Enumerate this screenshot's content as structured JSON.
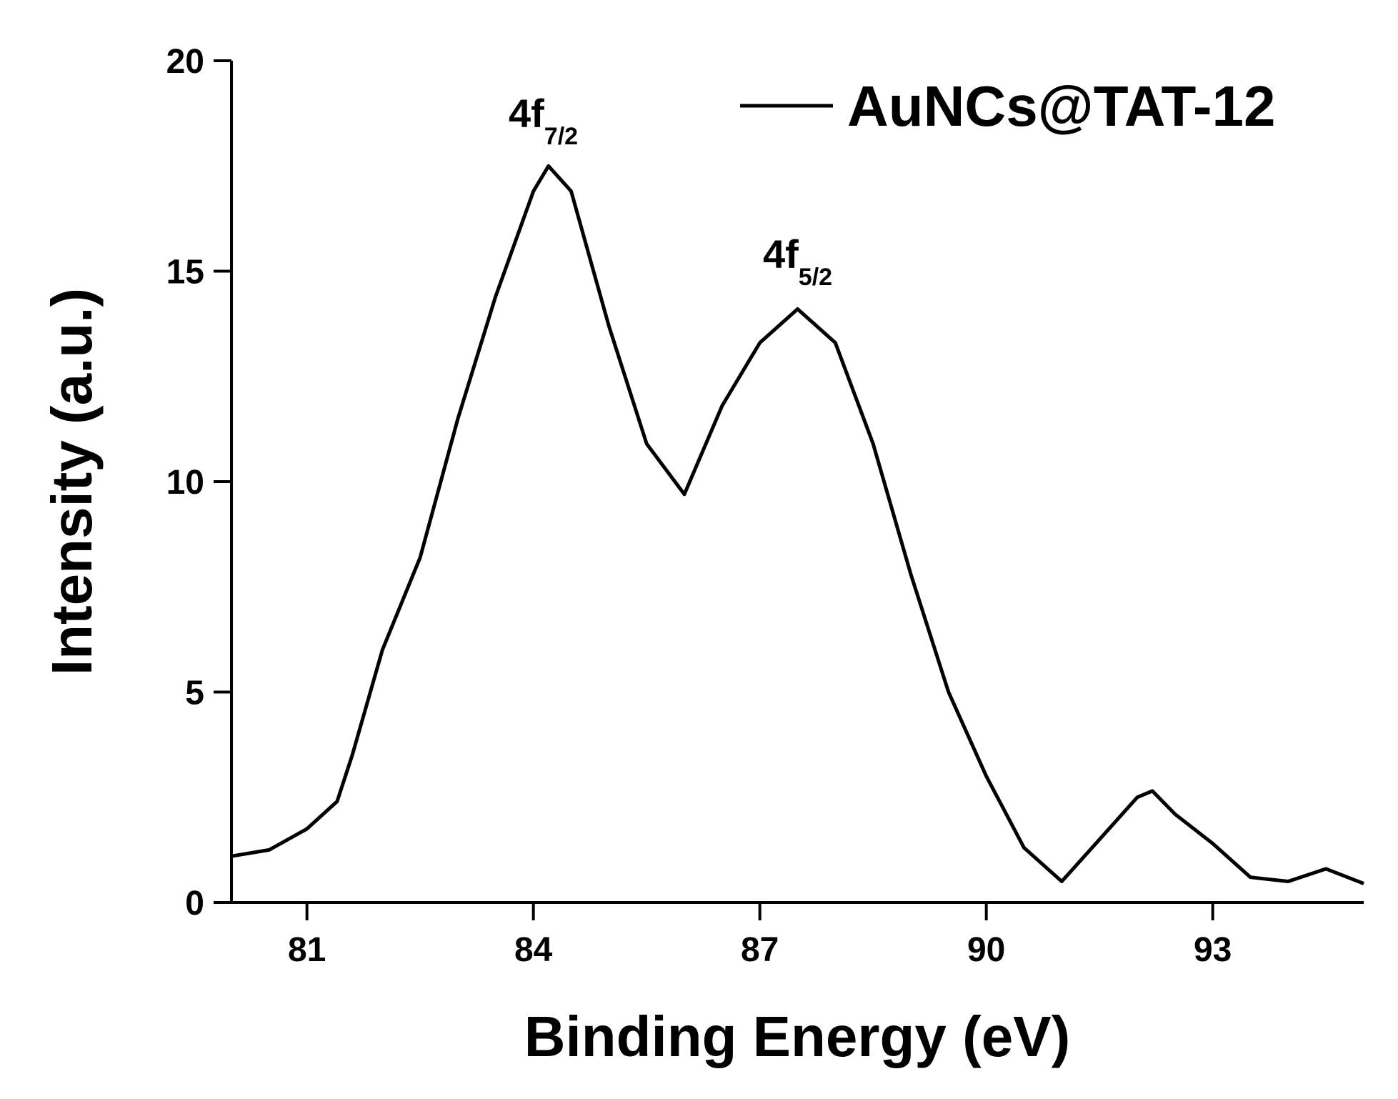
{
  "chart_data": {
    "type": "line",
    "x_label": "Binding Energy (eV)",
    "y_label": "Intensity (a.u.)",
    "x": [
      80,
      80.5,
      81,
      81.4,
      81.6,
      82,
      82.5,
      83,
      83.5,
      84,
      84.2,
      84.5,
      85,
      85.5,
      86,
      86.5,
      87,
      87.5,
      88,
      88.5,
      89,
      89.5,
      90,
      90.5,
      91,
      91.5,
      92,
      92.2,
      92.5,
      93,
      93.5,
      94,
      94.5,
      95
    ],
    "series": [
      {
        "name": "AuNCs@TAT-12",
        "color": "#000000",
        "values": [
          1.1,
          1.25,
          1.75,
          2.4,
          3.5,
          6.0,
          8.2,
          11.5,
          14.4,
          16.9,
          17.5,
          16.9,
          13.7,
          10.9,
          9.7,
          11.8,
          13.3,
          14.1,
          13.3,
          10.9,
          7.8,
          5.0,
          3.0,
          1.3,
          0.5,
          1.5,
          2.5,
          2.65,
          2.1,
          1.4,
          0.6,
          0.5,
          0.8,
          0.45
        ]
      }
    ],
    "annotations": [
      {
        "text": "4f",
        "sub": "7/2"
      },
      {
        "text": "4f",
        "sub": "5/2"
      }
    ],
    "xlim": [
      80,
      95
    ],
    "xticks": [
      81,
      84,
      87,
      90,
      93
    ],
    "ylim": [
      0,
      20
    ],
    "yticks": [
      0,
      5,
      10,
      15,
      20
    ],
    "legend": "top-right"
  }
}
